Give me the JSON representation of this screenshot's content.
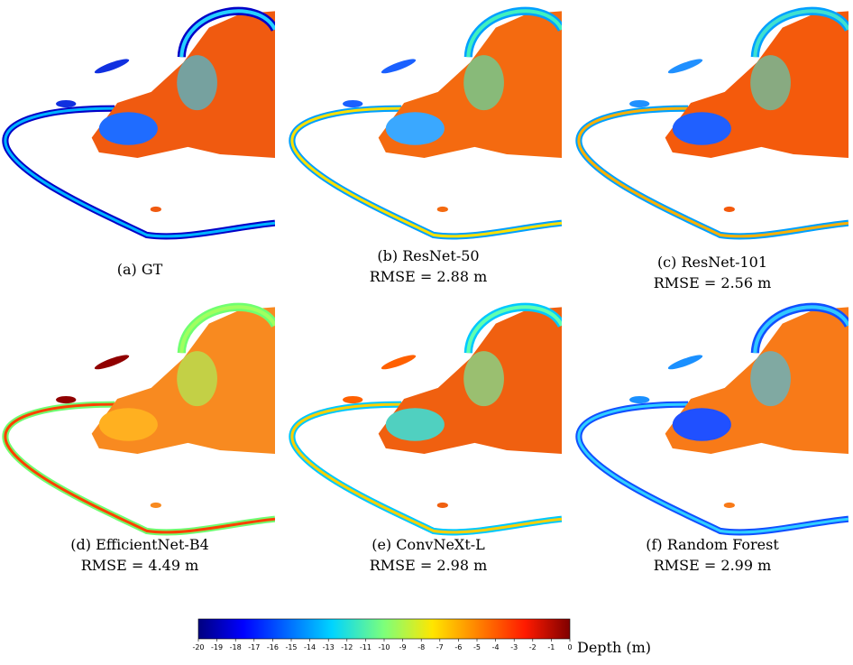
{
  "panels": [
    {
      "label": "(a) GT"
    },
    {
      "label": "(b) ResNet-50",
      "metric": "RMSE = 2.88 m"
    },
    {
      "label": "(c) ResNet-101",
      "metric": "RMSE = 2.56 m"
    },
    {
      "label": "(d) EfficientNet-B4",
      "metric": "RMSE = 4.49 m"
    },
    {
      "label": "(e) ConvNeXt-L",
      "metric": "RMSE = 2.98 m"
    },
    {
      "label": "(f) Random Forest",
      "metric": "RMSE = 2.99 m"
    }
  ],
  "colorbar": {
    "label": "Depth (m)",
    "lim": [
      -20,
      0
    ],
    "ticks": [
      -20,
      -19,
      -18,
      -17,
      -16,
      -15,
      -14,
      -13,
      -12,
      -11,
      -10,
      -9,
      -8,
      -7,
      -6,
      -5,
      -4,
      -3,
      -2,
      -1,
      0
    ]
  }
}
